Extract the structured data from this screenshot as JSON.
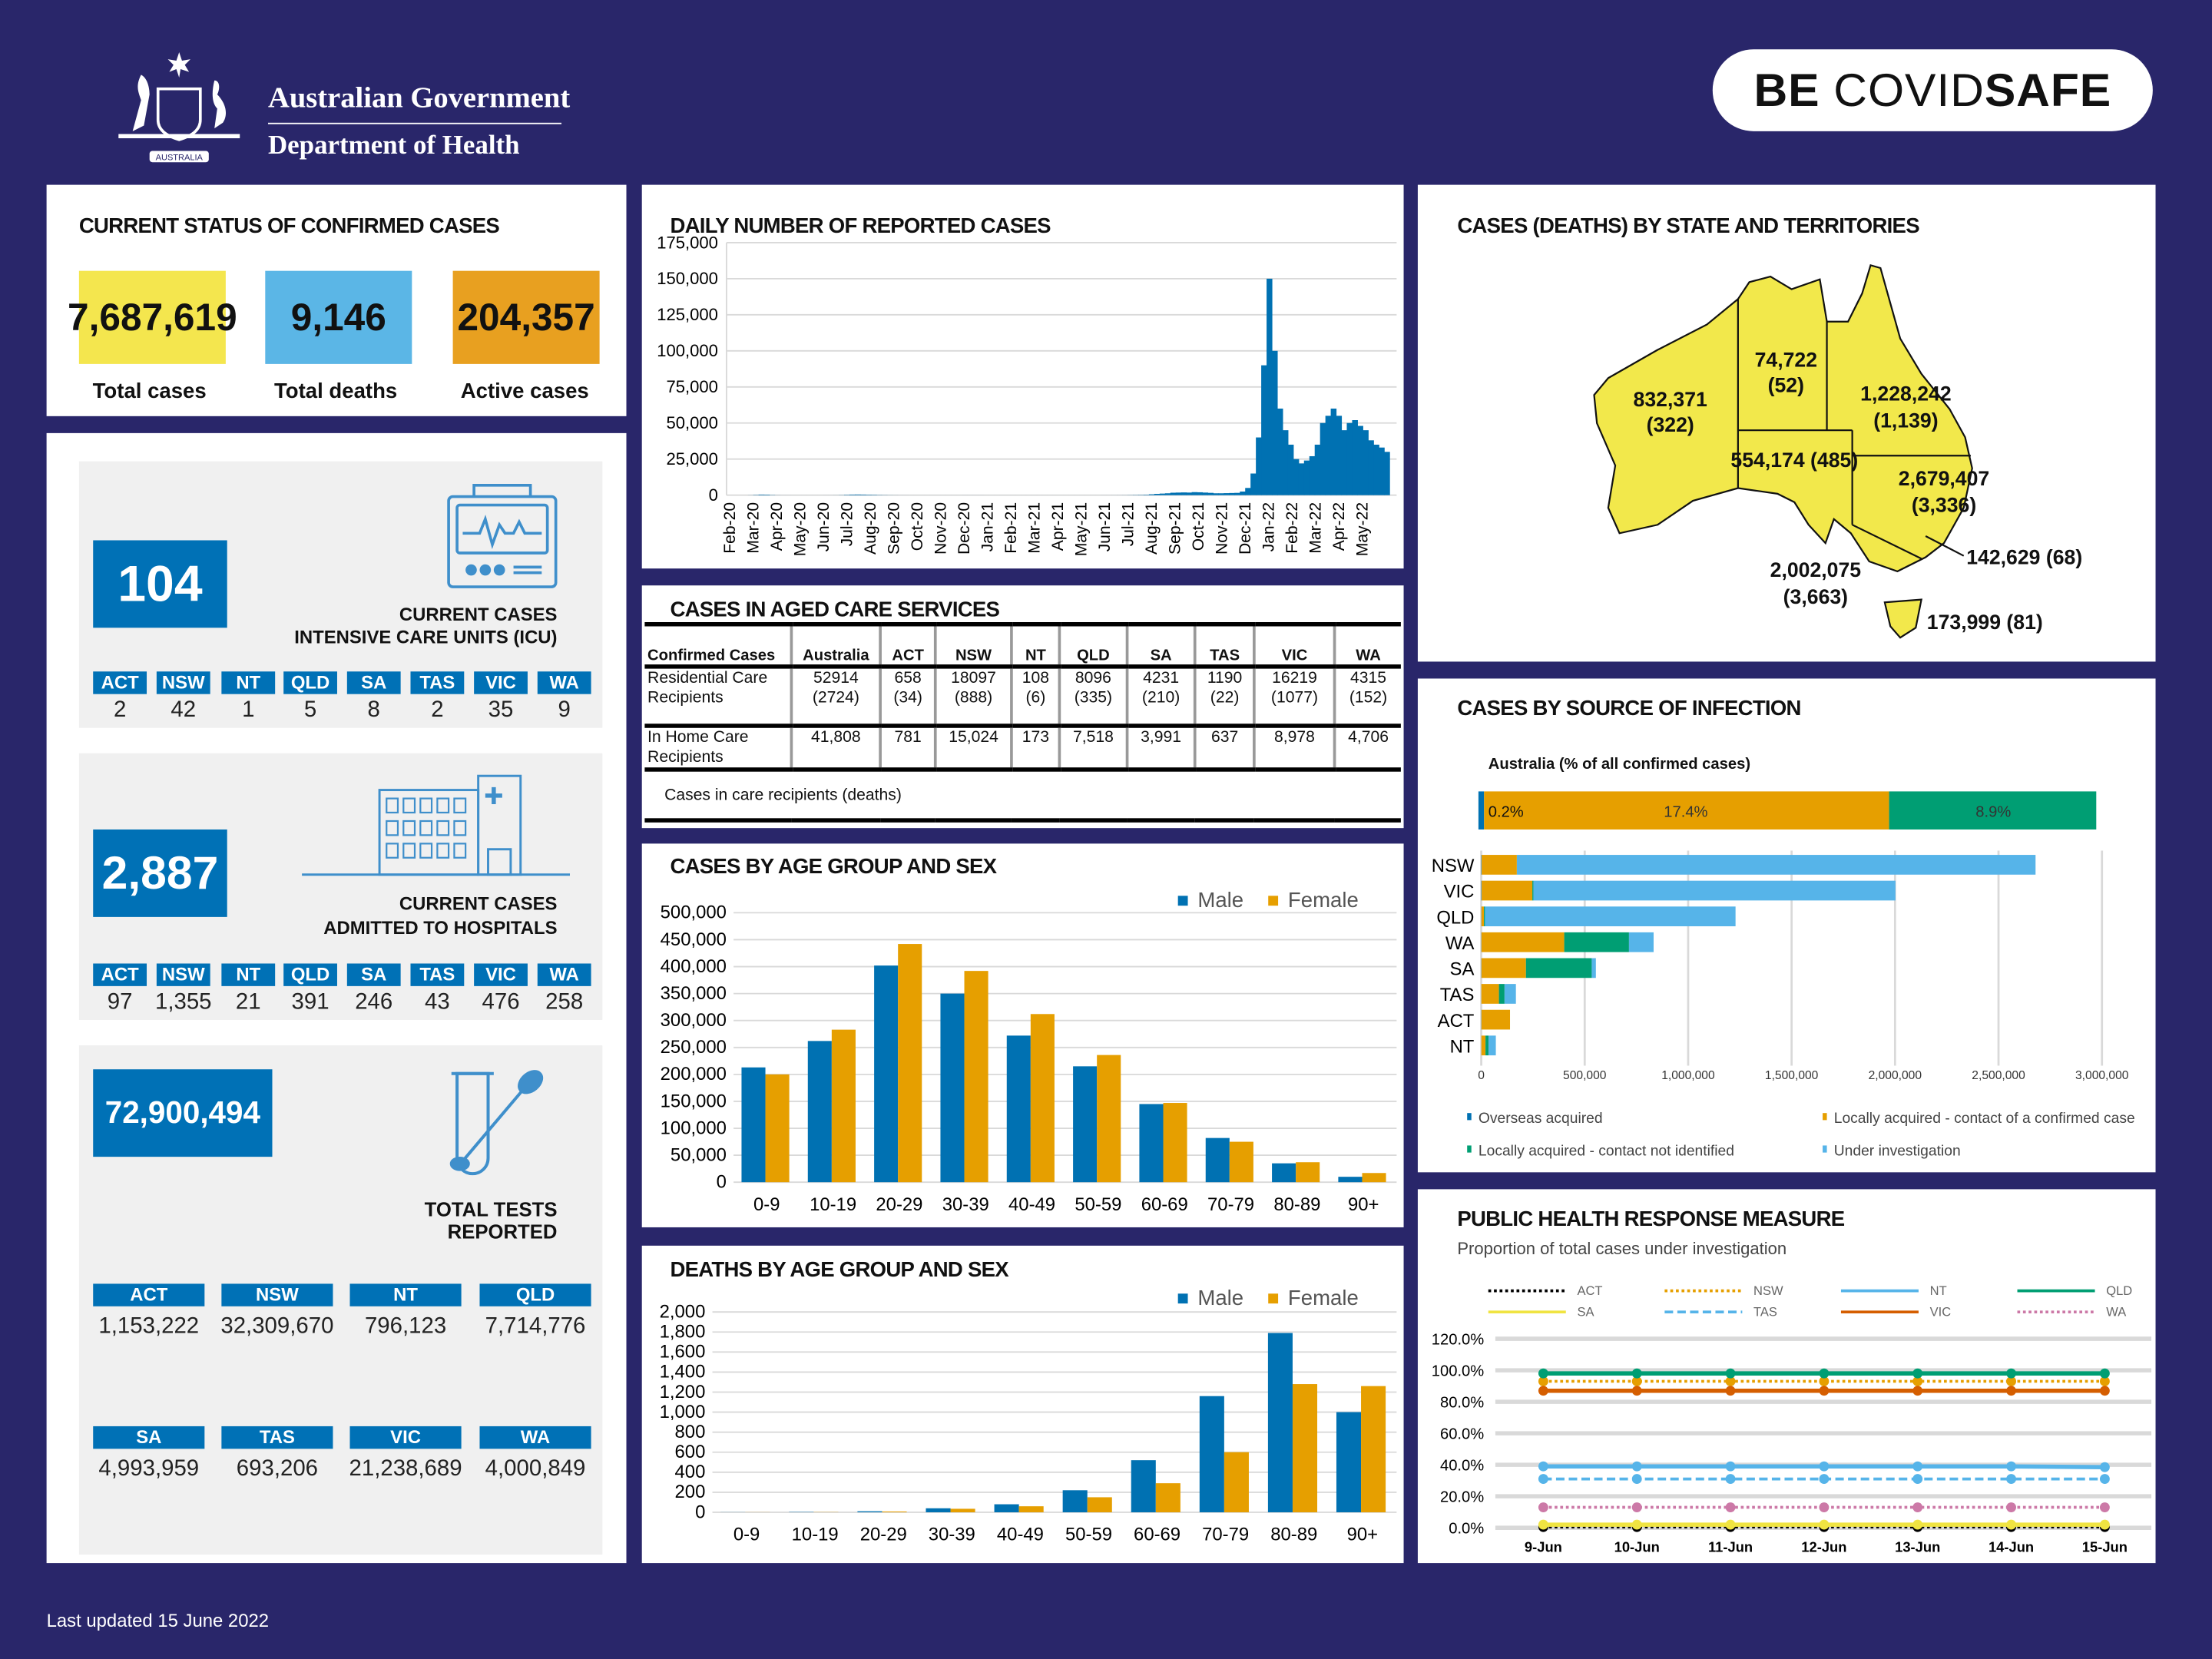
{
  "header": {
    "logo_line1": "Australian Government",
    "logo_line2": "Department of Health",
    "logo_motto": "AUSTRALIA",
    "covidsafe_be": "BE ",
    "covidsafe_covid": "COVID",
    "covidsafe_safe": "SAFE"
  },
  "status": {
    "title": "CURRENT STATUS OF CONFIRMED CASES",
    "items": [
      {
        "value": "7,687,619",
        "label": "Total cases",
        "color": "#f4e64e"
      },
      {
        "value": "9,146",
        "label": "Total deaths",
        "color": "#5bb6e6"
      },
      {
        "value": "204,357",
        "label": "Active cases",
        "color": "#e8a020"
      }
    ]
  },
  "icu": {
    "value": "104",
    "label_line1": "CURRENT CASES",
    "label_line2": "INTENSIVE CARE UNITS (ICU)",
    "states": [
      {
        "code": "ACT",
        "value": "2"
      },
      {
        "code": "NSW",
        "value": "42"
      },
      {
        "code": "NT",
        "value": "1"
      },
      {
        "code": "QLD",
        "value": "5"
      },
      {
        "code": "SA",
        "value": "8"
      },
      {
        "code": "TAS",
        "value": "2"
      },
      {
        "code": "VIC",
        "value": "35"
      },
      {
        "code": "WA",
        "value": "9"
      }
    ]
  },
  "hospital": {
    "value": "2,887",
    "label_line1": "CURRENT CASES",
    "label_line2": "ADMITTED TO HOSPITALS",
    "states": [
      {
        "code": "ACT",
        "value": "97"
      },
      {
        "code": "NSW",
        "value": "1,355"
      },
      {
        "code": "NT",
        "value": "21"
      },
      {
        "code": "QLD",
        "value": "391"
      },
      {
        "code": "SA",
        "value": "246"
      },
      {
        "code": "TAS",
        "value": "43"
      },
      {
        "code": "VIC",
        "value": "476"
      },
      {
        "code": "WA",
        "value": "258"
      }
    ]
  },
  "tests": {
    "value": "72,900,494",
    "label_line1": "TOTAL TESTS",
    "label_line2": "REPORTED",
    "states": [
      {
        "code": "ACT",
        "value": "1,153,222"
      },
      {
        "code": "NSW",
        "value": "32,309,670"
      },
      {
        "code": "NT",
        "value": "796,123"
      },
      {
        "code": "QLD",
        "value": "7,714,776"
      },
      {
        "code": "SA",
        "value": "4,993,959"
      },
      {
        "code": "TAS",
        "value": "693,206"
      },
      {
        "code": "VIC",
        "value": "21,238,689"
      },
      {
        "code": "WA",
        "value": "4,000,849"
      }
    ]
  },
  "aged_care": {
    "title": "CASES IN AGED CARE SERVICES",
    "headers": [
      "Confirmed Cases",
      "Australia",
      "ACT",
      "NSW",
      "NT",
      "QLD",
      "SA",
      "TAS",
      "VIC",
      "WA"
    ],
    "rows": [
      [
        "Residential Care Recipients",
        "52914 (2724)",
        "658 (34)",
        "18097 (888)",
        "108 (6)",
        "8096 (335)",
        "4231 (210)",
        "1190 (22)",
        "16219 (1077)",
        "4315 (152)"
      ],
      [
        "In Home Care Recipients",
        "41,808",
        "781",
        "15,024",
        "173",
        "7,518",
        "3,991",
        "637",
        "8,978",
        "4,706"
      ]
    ],
    "footnote": "Cases in care recipients (deaths)"
  },
  "map": {
    "title": "CASES (DEATHS) BY STATE AND TERRITORIES",
    "fill": "#f2e84b",
    "states": [
      {
        "code": "WA",
        "cases": "832,371",
        "deaths": "(322)"
      },
      {
        "code": "NT",
        "cases": "74,722",
        "deaths": "(52)"
      },
      {
        "code": "QLD",
        "cases": "1,228,242",
        "deaths": "(1,139)"
      },
      {
        "code": "SA",
        "cases": "554,174",
        "deaths": "(485)"
      },
      {
        "code": "NSW",
        "cases": "2,679,407",
        "deaths": "(3,336)"
      },
      {
        "code": "VIC",
        "cases": "2,002,075",
        "deaths": "(3,663)"
      },
      {
        "code": "ACT",
        "cases": "142,629",
        "deaths": "(68)"
      },
      {
        "code": "TAS",
        "cases": "173,999",
        "deaths": "(81)"
      }
    ]
  },
  "footer": {
    "updated": "Last updated 15 June 2022"
  },
  "chart_data": [
    {
      "id": "daily",
      "type": "bar",
      "title": "DAILY NUMBER OF REPORTED CASES",
      "color": "#0071b2",
      "ylim": [
        0,
        175000
      ],
      "yticks": [
        "0",
        "25,000",
        "50,000",
        "75,000",
        "100,000",
        "125,000",
        "150,000",
        "175,000"
      ],
      "xticks": [
        "Feb-20",
        "Mar-20",
        "Apr-20",
        "May-20",
        "Jun-20",
        "Jul-20",
        "Aug-20",
        "Sep-20",
        "Oct-20",
        "Nov-20",
        "Dec-20",
        "Jan-21",
        "Feb-21",
        "Mar-21",
        "Apr-21",
        "May-21",
        "Jun-21",
        "Jul-21",
        "Aug-21",
        "Sep-21",
        "Oct-21",
        "Nov-21",
        "Dec-21",
        "Jan-22",
        "Feb-22",
        "Mar-22",
        "Apr-22",
        "May-22"
      ],
      "x_granularity": "weekly from Feb-20",
      "values": [
        0,
        0,
        0,
        0,
        50,
        200,
        400,
        350,
        150,
        50,
        20,
        15,
        10,
        10,
        10,
        10,
        10,
        10,
        15,
        20,
        40,
        100,
        250,
        400,
        450,
        400,
        300,
        250,
        150,
        100,
        60,
        40,
        20,
        15,
        10,
        10,
        10,
        10,
        10,
        10,
        10,
        10,
        10,
        10,
        15,
        20,
        15,
        15,
        10,
        10,
        10,
        10,
        10,
        10,
        10,
        10,
        10,
        10,
        10,
        10,
        10,
        10,
        10,
        10,
        10,
        10,
        10,
        10,
        10,
        10,
        15,
        20,
        25,
        30,
        50,
        100,
        150,
        200,
        300,
        600,
        900,
        1100,
        1300,
        1700,
        1800,
        1900,
        1800,
        2100,
        2000,
        1800,
        1600,
        1300,
        1300,
        1400,
        1500,
        1600,
        2500,
        5000,
        15000,
        40000,
        90000,
        150000,
        100000,
        60000,
        45000,
        35000,
        25000,
        22000,
        24000,
        27000,
        35000,
        50000,
        55000,
        60000,
        55000,
        45000,
        50000,
        52000,
        48000,
        45000,
        38000,
        35000,
        33000,
        30000
      ]
    },
    {
      "id": "age_cases",
      "type": "bar",
      "title": "CASES BY AGE GROUP AND SEX",
      "ylim": [
        0,
        500000
      ],
      "yticks": [
        "0",
        "50,000",
        "100,000",
        "150,000",
        "200,000",
        "250,000",
        "300,000",
        "350,000",
        "400,000",
        "450,000",
        "500,000"
      ],
      "categories": [
        "0-9",
        "10-19",
        "20-29",
        "30-39",
        "40-49",
        "50-59",
        "60-69",
        "70-79",
        "80-89",
        "90+"
      ],
      "series": [
        {
          "name": "Male",
          "color": "#0071b2",
          "values": [
            213000,
            262000,
            402000,
            350000,
            272000,
            215000,
            145000,
            82000,
            35000,
            10000
          ]
        },
        {
          "name": "Female",
          "color": "#e69f00",
          "values": [
            200000,
            283000,
            442000,
            392000,
            312000,
            236000,
            147000,
            75000,
            37000,
            17000
          ]
        }
      ]
    },
    {
      "id": "age_deaths",
      "type": "bar",
      "title": "DEATHS BY AGE GROUP AND SEX",
      "ylim": [
        0,
        2000
      ],
      "yticks": [
        "0",
        "200",
        "400",
        "600",
        "800",
        "1,000",
        "1,200",
        "1,400",
        "1,600",
        "1,800",
        "2,000"
      ],
      "categories": [
        "0-9",
        "10-19",
        "20-29",
        "30-39",
        "40-49",
        "50-59",
        "60-69",
        "70-79",
        "80-89",
        "90+"
      ],
      "series": [
        {
          "name": "Male",
          "color": "#0071b2",
          "values": [
            1,
            3,
            10,
            40,
            80,
            220,
            520,
            1160,
            1790,
            1000
          ]
        },
        {
          "name": "Female",
          "color": "#e69f00",
          "values": [
            1,
            2,
            8,
            35,
            60,
            150,
            290,
            600,
            1280,
            1260
          ]
        }
      ]
    },
    {
      "id": "source",
      "type": "bar",
      "orientation": "horizontal-stacked",
      "title": "CASES BY SOURCE OF INFECTION",
      "subtitle": "Australia (% of all confirmed cases)",
      "australia": [
        {
          "label": "0.2%",
          "value": 0.2,
          "color": "#0071b2"
        },
        {
          "label": "17.4%",
          "value": 17.4,
          "color": "#e69f00"
        },
        {
          "label": "8.9%",
          "value": 8.9,
          "color": "#009e73"
        }
      ],
      "xlim": [
        0,
        3000000
      ],
      "xticks": [
        "0",
        "500,000",
        "1,000,000",
        "1,500,000",
        "2,000,000",
        "2,500,000",
        "3,000,000"
      ],
      "categories": [
        "NSW",
        "VIC",
        "QLD",
        "WA",
        "SA",
        "TAS",
        "ACT",
        "NT"
      ],
      "series": [
        {
          "name": "Overseas acquired",
          "color": "#0071b2",
          "values": [
            2000,
            2000,
            1000,
            1000,
            1000,
            500,
            1000,
            500
          ]
        },
        {
          "name": "Locally acquired - contact of a confirmed case",
          "color": "#e69f00",
          "values": [
            170000,
            245000,
            12000,
            400000,
            215000,
            85000,
            138000,
            20000
          ]
        },
        {
          "name": "Locally acquired - contact not identified",
          "color": "#009e73",
          "values": [
            0,
            5000,
            5000,
            313000,
            318000,
            27000,
            0,
            15000
          ]
        },
        {
          "name": "Under investigation",
          "color": "#56b4e9",
          "values": [
            2507000,
            1750000,
            1211000,
            119000,
            20000,
            55000,
            0,
            35000
          ]
        }
      ]
    },
    {
      "id": "phrm",
      "type": "line",
      "title": "PUBLIC HEALTH RESPONSE MEASURE",
      "subtitle": "Proportion of total cases under investigation",
      "ylim": [
        0,
        120
      ],
      "yticks": [
        "0.0%",
        "20.0%",
        "40.0%",
        "60.0%",
        "80.0%",
        "100.0%",
        "120.0%"
      ],
      "categories": [
        "9-Jun",
        "10-Jun",
        "11-Jun",
        "12-Jun",
        "13-Jun",
        "14-Jun",
        "15-Jun"
      ],
      "series": [
        {
          "name": "ACT",
          "color": "#000000",
          "dash": "dot",
          "values": [
            0.5,
            0.5,
            0.5,
            0.5,
            0.5,
            0.5,
            0.5
          ]
        },
        {
          "name": "NSW",
          "color": "#e69f00",
          "dash": "dot",
          "values": [
            93,
            93,
            93,
            93,
            93,
            93,
            93
          ]
        },
        {
          "name": "NT",
          "color": "#56b4e9",
          "dash": "solid",
          "values": [
            39,
            39,
            39,
            39,
            39,
            39,
            38.5
          ]
        },
        {
          "name": "QLD",
          "color": "#009e73",
          "dash": "solid",
          "values": [
            98,
            98,
            98,
            98,
            98,
            98,
            98
          ]
        },
        {
          "name": "SA",
          "color": "#f0e442",
          "dash": "solid",
          "values": [
            2,
            2,
            2,
            2,
            2,
            2,
            2
          ]
        },
        {
          "name": "TAS",
          "color": "#56b4e9",
          "dash": "dash",
          "values": [
            31,
            31,
            31,
            31,
            31,
            31,
            31
          ]
        },
        {
          "name": "VIC",
          "color": "#d55e00",
          "dash": "solid",
          "values": [
            87,
            87,
            87,
            87,
            87,
            87,
            87
          ]
        },
        {
          "name": "WA",
          "color": "#cc79a7",
          "dash": "dot",
          "values": [
            13,
            13,
            13,
            13,
            13,
            13,
            13
          ]
        }
      ]
    }
  ]
}
